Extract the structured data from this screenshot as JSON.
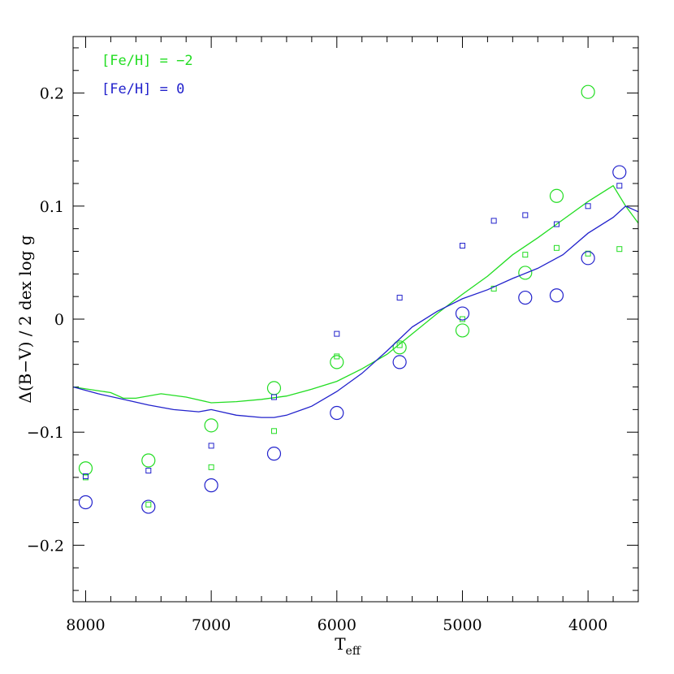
{
  "chart_data": {
    "type": "line",
    "xlabel": "T",
    "xlabel_sub": "eff",
    "ylabel": "Δ(B−V) / 2 dex log g",
    "xlim": [
      8100,
      3600
    ],
    "ylim": [
      -0.25,
      0.25
    ],
    "x_ticks": [
      8000,
      7000,
      6000,
      5000,
      4000
    ],
    "x_tick_labels": [
      "8000",
      "7000",
      "6000",
      "5000",
      "4000"
    ],
    "y_ticks": [
      -0.2,
      -0.1,
      0,
      0.1,
      0.2
    ],
    "y_tick_labels": [
      "−0.2",
      "−0.1",
      "0",
      "0.1",
      "0.2"
    ],
    "legend_position": "top-left",
    "series": [
      {
        "name": "[Fe/H] = −2",
        "color": "#22dd22",
        "line": {
          "x": [
            8100,
            7800,
            7700,
            7600,
            7400,
            7200,
            7000,
            6800,
            6600,
            6400,
            6200,
            6000,
            5800,
            5600,
            5400,
            5200,
            5000,
            4800,
            4600,
            4400,
            4200,
            4000,
            3800,
            3700,
            3600
          ],
          "y": [
            -0.06,
            -0.065,
            -0.07,
            -0.07,
            -0.066,
            -0.069,
            -0.074,
            -0.073,
            -0.071,
            -0.068,
            -0.062,
            -0.055,
            -0.044,
            -0.031,
            -0.013,
            0.005,
            0.022,
            0.038,
            0.057,
            0.072,
            0.088,
            0.104,
            0.118,
            0.1,
            0.085
          ]
        },
        "circles": {
          "x": [
            8000,
            7500,
            7000,
            6500,
            6000,
            5500,
            5000,
            4500,
            4250,
            4000
          ],
          "y": [
            -0.132,
            -0.125,
            -0.094,
            -0.061,
            -0.038,
            -0.025,
            -0.01,
            0.041,
            0.109,
            0.201
          ]
        },
        "squares": {
          "x": [
            8000,
            7500,
            7000,
            6500,
            6000,
            5500,
            5000,
            4750,
            4500,
            4250,
            4000,
            3750
          ],
          "y": [
            -0.14,
            -0.164,
            -0.131,
            -0.099,
            -0.033,
            -0.023,
            0.0,
            0.027,
            0.057,
            0.063,
            0.058,
            0.062
          ]
        }
      },
      {
        "name": "[Fe/H] = 0",
        "color": "#2222cc",
        "line": {
          "x": [
            8100,
            7900,
            7700,
            7500,
            7300,
            7100,
            7000,
            6800,
            6600,
            6500,
            6400,
            6200,
            6000,
            5800,
            5600,
            5400,
            5200,
            5000,
            4800,
            4600,
            4400,
            4200,
            4000,
            3800,
            3700,
            3600
          ],
          "y": [
            -0.06,
            -0.066,
            -0.071,
            -0.076,
            -0.08,
            -0.082,
            -0.08,
            -0.085,
            -0.087,
            -0.087,
            -0.085,
            -0.077,
            -0.064,
            -0.048,
            -0.028,
            -0.007,
            0.007,
            0.018,
            0.026,
            0.036,
            0.045,
            0.057,
            0.076,
            0.09,
            0.1,
            0.095
          ]
        },
        "circles": {
          "x": [
            8000,
            7500,
            7000,
            6500,
            6000,
            5500,
            5000,
            4500,
            4250,
            4000,
            3750
          ],
          "y": [
            -0.162,
            -0.166,
            -0.147,
            -0.119,
            -0.083,
            -0.038,
            0.005,
            0.019,
            0.021,
            0.054,
            0.13
          ]
        },
        "squares": {
          "x": [
            8000,
            7500,
            7000,
            6500,
            6000,
            5500,
            5000,
            4750,
            4500,
            4250,
            4000,
            3750
          ],
          "y": [
            -0.139,
            -0.134,
            -0.112,
            -0.069,
            -0.013,
            0.019,
            0.065,
            0.087,
            0.092,
            0.084,
            0.1,
            0.118
          ]
        }
      }
    ]
  }
}
